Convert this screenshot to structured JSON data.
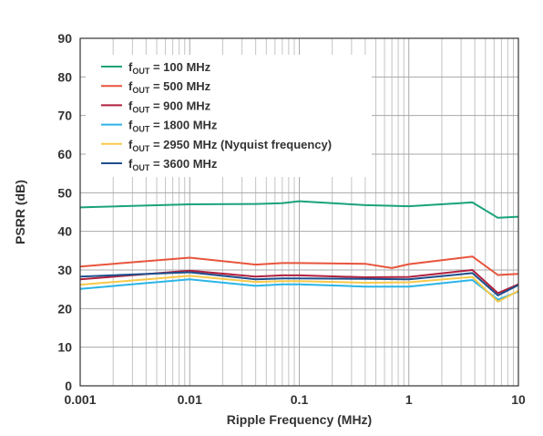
{
  "chart_data": {
    "type": "line",
    "xscale": "log",
    "xlabel": "Ripple Frequency (MHz)",
    "ylabel": "PSRR (dB)",
    "xlim": [
      0.001,
      10
    ],
    "ylim": [
      0,
      90
    ],
    "grid": true,
    "legend_position": "top-left",
    "x_ticks": [
      "0.001",
      "0.01",
      "0.1",
      "1",
      "10"
    ],
    "y_ticks": [
      "0",
      "10",
      "20",
      "30",
      "40",
      "50",
      "60",
      "70",
      "80",
      "90"
    ],
    "series": [
      {
        "name_prefix": "f",
        "name_sub": "OUT",
        "name_suffix": " = 100 MHz",
        "color": "#1aa37a",
        "x": [
          0.001,
          0.01,
          0.04,
          0.07,
          0.1,
          0.4,
          1,
          3.8,
          6.5,
          10
        ],
        "y": [
          46.2,
          47.0,
          47.1,
          47.3,
          47.8,
          46.8,
          46.5,
          47.5,
          43.5,
          43.8
        ]
      },
      {
        "name_prefix": "f",
        "name_sub": "OUT",
        "name_suffix": " = 500 MHz",
        "color": "#e8543c",
        "x": [
          0.001,
          0.01,
          0.04,
          0.07,
          0.1,
          0.4,
          0.7,
          1,
          3.8,
          6.5,
          10
        ],
        "y": [
          30.9,
          33.2,
          31.4,
          31.8,
          31.8,
          31.6,
          30.5,
          31.5,
          33.5,
          28.7,
          29.0
        ]
      },
      {
        "name_prefix": "f",
        "name_sub": "OUT",
        "name_suffix": " = 900 MHz",
        "color": "#b0203e",
        "x": [
          0.001,
          0.01,
          0.04,
          0.07,
          0.1,
          0.4,
          1,
          3.8,
          6.5,
          10
        ],
        "y": [
          27.6,
          29.8,
          28.3,
          28.6,
          28.6,
          28.1,
          28.2,
          30.0,
          24.0,
          26.3
        ]
      },
      {
        "name_prefix": "f",
        "name_sub": "OUT",
        "name_suffix": " = 1800 MHz",
        "color": "#2bb5e6",
        "x": [
          0.001,
          0.01,
          0.04,
          0.07,
          0.1,
          0.4,
          1,
          3.8,
          6.5,
          10
        ],
        "y": [
          25.1,
          27.6,
          25.9,
          26.3,
          26.3,
          25.7,
          25.7,
          27.4,
          22.3,
          24.4
        ]
      },
      {
        "name_prefix": "f",
        "name_sub": "OUT",
        "name_suffix": " = 2950 MHz (Nyquist frequency)",
        "color": "#f7c948",
        "x": [
          0.001,
          0.01,
          0.04,
          0.07,
          0.1,
          0.4,
          1,
          3.8,
          6.5,
          10
        ],
        "y": [
          26.2,
          28.5,
          26.9,
          27.1,
          27.1,
          26.7,
          26.8,
          28.2,
          21.8,
          24.6
        ]
      },
      {
        "name_prefix": "f",
        "name_sub": "OUT",
        "name_suffix": " = 3600 MHz",
        "color": "#1d4f8c",
        "x": [
          0.001,
          0.01,
          0.04,
          0.07,
          0.1,
          0.4,
          1,
          3.8,
          6.5,
          10
        ],
        "y": [
          28.3,
          29.4,
          27.6,
          27.8,
          27.8,
          27.7,
          27.6,
          29.2,
          23.4,
          26.1
        ]
      }
    ]
  }
}
